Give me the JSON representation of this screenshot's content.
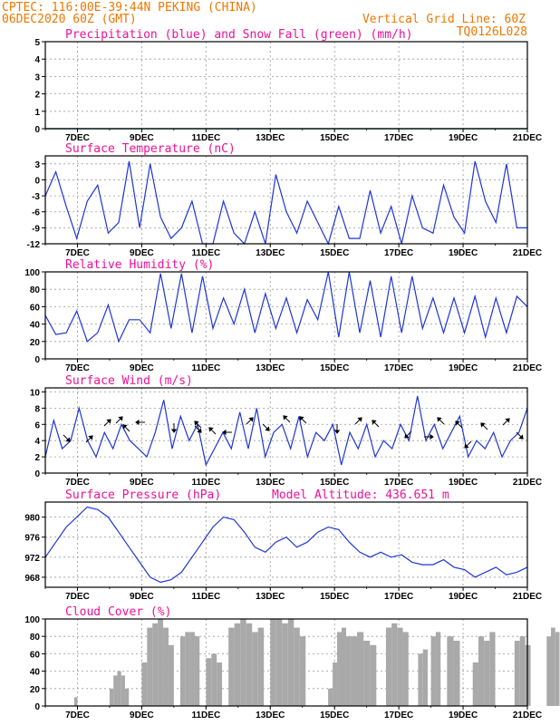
{
  "header": {
    "line1_left": "CPTEC:   116:00E-39:44N   PEKING (CHINA)",
    "line2_left": "06DEC2020 60Z (GMT)",
    "line2_right": "Vertical Grid Line: 60Z",
    "line3_right": "TQ0126L028"
  },
  "colors": {
    "header": "#ee7700",
    "title": "#ee1199",
    "line": "#1f35d6",
    "bar": "#a9a9a9",
    "snow": "#22aa22",
    "arrow": "#000000"
  },
  "chart_data": [
    {
      "type": "line",
      "title": "Precipitation (blue) and Snow Fall (green) (mm/h)",
      "x_ticks": [
        "7DEC",
        "9DEC",
        "11DEC",
        "13DEC",
        "15DEC",
        "17DEC",
        "19DEC",
        "21DEC"
      ],
      "y_ticks": [
        "0",
        "1",
        "2",
        "3",
        "4",
        "5"
      ],
      "ylim": [
        0,
        5
      ],
      "grid": true,
      "series": [
        {
          "name": "Precipitation",
          "color": "#1f35d6",
          "values": [
            0,
            0,
            0,
            0,
            0,
            0,
            0,
            0,
            0,
            0,
            0,
            0,
            0,
            0,
            0,
            0,
            0,
            0,
            0,
            0,
            0,
            0,
            0,
            0,
            0,
            0,
            0,
            0,
            0,
            0,
            0,
            0
          ]
        },
        {
          "name": "Snow Fall",
          "color": "#22aa22",
          "values": [
            0,
            0,
            0,
            0,
            0,
            0,
            0,
            0,
            0,
            0,
            0,
            0,
            0,
            0,
            0,
            0,
            0,
            0,
            0,
            0,
            0,
            0,
            0,
            0,
            0,
            0,
            0,
            0,
            0,
            0,
            0,
            0
          ]
        }
      ]
    },
    {
      "type": "line",
      "title": "Surface Temperature (nC)",
      "x_ticks": [
        "7DEC",
        "9DEC",
        "11DEC",
        "13DEC",
        "15DEC",
        "17DEC",
        "19DEC",
        "21DEC"
      ],
      "y_ticks": [
        "-12",
        "-9",
        "-6",
        "-3",
        "0",
        "3"
      ],
      "ylim": [
        -12,
        4.5
      ],
      "grid": true,
      "values": [
        -3,
        1.5,
        -5,
        -11,
        -4,
        -1,
        -10,
        -8,
        3.5,
        -9,
        3,
        -7,
        -11,
        -9,
        -4,
        -12,
        -12,
        -4,
        -10,
        -12,
        -6,
        -12,
        1,
        -6,
        -10,
        -4,
        -8,
        -12,
        -5,
        -11,
        -11,
        -2,
        -10,
        -5,
        -12,
        -3,
        -9,
        -10,
        -1,
        -7,
        -10,
        3.5,
        -4,
        -8,
        3,
        -9,
        -9
      ]
    },
    {
      "type": "line",
      "title": "Relative Humidity (%)",
      "x_ticks": [
        "7DEC",
        "9DEC",
        "11DEC",
        "13DEC",
        "15DEC",
        "17DEC",
        "19DEC",
        "21DEC"
      ],
      "y_ticks": [
        "0",
        "20",
        "40",
        "60",
        "80",
        "100"
      ],
      "ylim": [
        0,
        100
      ],
      "grid": true,
      "values": [
        50,
        28,
        30,
        55,
        20,
        30,
        62,
        20,
        45,
        45,
        30,
        98,
        35,
        98,
        30,
        95,
        35,
        70,
        40,
        80,
        30,
        75,
        35,
        70,
        30,
        68,
        45,
        100,
        25,
        100,
        30,
        90,
        25,
        95,
        30,
        95,
        35,
        70,
        30,
        70,
        30,
        72,
        25,
        70,
        30,
        72,
        60
      ]
    },
    {
      "type": "line",
      "title": "Surface Wind (m/s)",
      "x_ticks": [
        "7DEC",
        "9DEC",
        "11DEC",
        "13DEC",
        "15DEC",
        "17DEC",
        "19DEC",
        "21DEC"
      ],
      "y_ticks": [
        "0",
        "2",
        "4",
        "6",
        "8",
        "10"
      ],
      "ylim": [
        0,
        10.5
      ],
      "grid": true,
      "values": [
        2,
        6.5,
        3,
        4,
        8,
        4,
        2,
        5,
        3,
        6,
        4,
        3,
        2,
        5,
        9,
        3,
        7,
        4,
        6,
        1,
        3,
        5,
        3,
        7.5,
        3,
        8,
        2,
        5,
        6,
        3,
        7,
        2,
        5,
        4,
        6,
        1,
        5,
        3,
        6,
        2,
        4,
        3,
        6,
        4,
        9.5,
        4,
        6,
        3,
        5,
        7,
        2,
        4,
        3,
        5,
        2,
        4,
        5,
        8
      ]
    },
    {
      "type": "line",
      "title": "Surface Pressure (hPa)",
      "annotation": "Model Altitude: 436.651 m",
      "x_ticks": [
        "7DEC",
        "9DEC",
        "11DEC",
        "13DEC",
        "15DEC",
        "17DEC",
        "19DEC",
        "21DEC"
      ],
      "y_ticks": [
        "968",
        "972",
        "976",
        "980"
      ],
      "ylim": [
        966,
        983
      ],
      "grid": true,
      "values": [
        972,
        975,
        978,
        980,
        982,
        981.5,
        980,
        977,
        974,
        971,
        968,
        967,
        967.5,
        969,
        972,
        975,
        978,
        980,
        979.5,
        977,
        974,
        973,
        975,
        976,
        974,
        975,
        977,
        978,
        977.5,
        975,
        973,
        972,
        973,
        972,
        972.5,
        971,
        970.5,
        970.5,
        971.5,
        970,
        969.5,
        968,
        969,
        970,
        968.5,
        969,
        970
      ]
    },
    {
      "type": "bar",
      "title": "Cloud Cover (%)",
      "x_ticks": [
        "7DEC",
        "9DEC",
        "11DEC",
        "13DEC",
        "15DEC",
        "17DEC",
        "19DEC",
        "21DEC"
      ],
      "y_ticks": [
        "0",
        "20",
        "40",
        "60",
        "80",
        "100"
      ],
      "ylim": [
        0,
        100
      ],
      "grid": true,
      "segments": [
        {
          "start": 0.9,
          "end": 1.0,
          "values": [
            10
          ]
        },
        {
          "start": 2.0,
          "end": 2.6,
          "values": [
            20,
            35,
            40,
            35,
            20
          ]
        },
        {
          "start": 3.0,
          "end": 4.0,
          "values": [
            50,
            90,
            95,
            100,
            90,
            70
          ]
        },
        {
          "start": 4.2,
          "end": 4.8,
          "values": [
            80,
            85,
            85,
            80
          ]
        },
        {
          "start": 5.0,
          "end": 5.5,
          "values": [
            55,
            60,
            50
          ]
        },
        {
          "start": 5.7,
          "end": 6.8,
          "values": [
            90,
            95,
            100,
            95,
            85,
            90
          ]
        },
        {
          "start": 7.0,
          "end": 8.1,
          "values": [
            100,
            100,
            95,
            100,
            90,
            80
          ]
        },
        {
          "start": 8.8,
          "end": 9.5,
          "values": [
            20,
            50,
            85,
            90,
            80
          ]
        },
        {
          "start": 9.5,
          "end": 10.3,
          "values": [
            80,
            85,
            75,
            70
          ]
        },
        {
          "start": 10.6,
          "end": 11.3,
          "values": [
            90,
            95,
            90,
            85
          ]
        },
        {
          "start": 11.6,
          "end": 11.9,
          "values": [
            60,
            65
          ]
        },
        {
          "start": 12.0,
          "end": 12.3,
          "values": [
            80,
            85
          ]
        },
        {
          "start": 12.5,
          "end": 12.9,
          "values": [
            80,
            75
          ]
        },
        {
          "start": 13.3,
          "end": 14.0,
          "values": [
            50,
            80,
            75,
            85
          ]
        },
        {
          "start": 14.6,
          "end": 15.1,
          "values": [
            75,
            80,
            70
          ]
        },
        {
          "start": 15.6,
          "end": 16.0,
          "values": [
            80,
            90,
            85
          ]
        },
        {
          "start": 16.2,
          "end": 16.5,
          "values": [
            80,
            75
          ]
        },
        {
          "start": 16.8,
          "end": 17.0,
          "values": [
            45,
            50
          ]
        },
        {
          "start": 17.6,
          "end": 18.0,
          "values": [
            95,
            100,
            90
          ]
        }
      ]
    }
  ]
}
